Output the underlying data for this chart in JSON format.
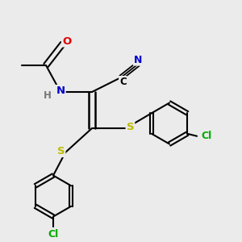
{
  "bg_color": "#ebebeb",
  "atom_colors": {
    "C": "#000000",
    "N": "#0000cc",
    "O": "#dd0000",
    "S": "#bbbb00",
    "Cl": "#00aa00",
    "H": "#777777"
  },
  "bond_color": "#000000",
  "figsize": [
    3.0,
    3.0
  ],
  "dpi": 100
}
